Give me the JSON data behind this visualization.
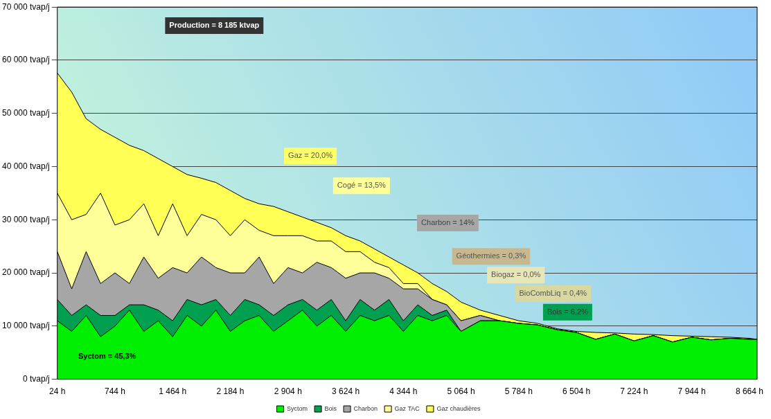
{
  "chart_data": {
    "type": "area",
    "stacked": true,
    "x": [
      24,
      204,
      384,
      564,
      744,
      924,
      1104,
      1284,
      1464,
      1644,
      1824,
      2004,
      2184,
      2364,
      2544,
      2724,
      2904,
      3084,
      3264,
      3444,
      3624,
      3804,
      3984,
      4164,
      4344,
      4524,
      4704,
      4884,
      5064,
      5304,
      5544,
      5784,
      6024,
      6264,
      6504,
      6744,
      6984,
      7224,
      7464,
      7704,
      7944,
      8184,
      8424,
      8664,
      8760
    ],
    "series": [
      {
        "name": "Syctom",
        "color": "#00ee00",
        "values": [
          11000,
          9000,
          12000,
          8000,
          10000,
          13000,
          9000,
          11000,
          8000,
          12000,
          10000,
          13000,
          9000,
          11000,
          12000,
          9000,
          11000,
          13000,
          10000,
          12000,
          9000,
          12000,
          11000,
          12000,
          9000,
          12000,
          11000,
          12000,
          9000,
          11000,
          11000,
          10500,
          10200,
          9300,
          8800,
          7500,
          8500,
          7200,
          8200,
          7000,
          7900,
          7400,
          7700,
          7500,
          7500
        ]
      },
      {
        "name": "Bois",
        "color": "#00a050",
        "values": [
          4000,
          3000,
          2000,
          4000,
          2000,
          1000,
          5000,
          2000,
          3000,
          3000,
          4000,
          2000,
          3000,
          4000,
          2000,
          3000,
          3000,
          2000,
          3000,
          3000,
          2000,
          3000,
          2000,
          3000,
          2000,
          2000,
          1000,
          1000,
          0,
          0,
          0,
          0,
          0,
          0,
          0,
          0,
          0,
          0,
          0,
          0,
          0,
          0,
          0,
          0,
          0
        ]
      },
      {
        "name": "Charbon",
        "color": "#a6a6a6",
        "values": [
          9000,
          5000,
          10000,
          6000,
          8000,
          4000,
          9000,
          6000,
          10000,
          5000,
          9000,
          6000,
          8000,
          5000,
          9000,
          6000,
          7000,
          5000,
          9000,
          6000,
          8000,
          5000,
          7000,
          4000,
          6000,
          3000,
          3000,
          1000,
          2000,
          1000,
          0,
          0,
          0,
          0,
          0,
          0,
          0,
          0,
          0,
          0,
          0,
          0,
          0,
          0,
          0
        ]
      },
      {
        "name": "Gaz TAC",
        "color": "#ffff99",
        "values": [
          11000,
          13000,
          7000,
          17000,
          9000,
          12000,
          10000,
          8000,
          12000,
          7000,
          8000,
          9000,
          7000,
          10000,
          5000,
          9000,
          6000,
          7000,
          4000,
          5000,
          5000,
          4000,
          2000,
          2000,
          1000,
          1000,
          0,
          0,
          0,
          0,
          0,
          0,
          0,
          0,
          0,
          0,
          0,
          0,
          0,
          0,
          0,
          0,
          0,
          0,
          0
        ]
      },
      {
        "name": "Gaz chaudières",
        "color": "#ffff55",
        "values": [
          22600,
          24000,
          18000,
          12000,
          16500,
          14000,
          10000,
          14500,
          7000,
          11500,
          6800,
          7000,
          8500,
          4000,
          5000,
          5500,
          4500,
          3500,
          3500,
          2500,
          3000,
          2000,
          2500,
          2000,
          3500,
          2000,
          3000,
          2500,
          3500,
          1000,
          1000,
          500,
          300,
          200,
          200,
          1300,
          200,
          1300,
          200,
          1200,
          200,
          600,
          200,
          200,
          0
        ]
      }
    ],
    "xlim": [
      24,
      8760
    ],
    "xticks": [
      {
        "value": 24,
        "label": "24 h"
      },
      {
        "value": 744,
        "label": "744 h"
      },
      {
        "value": 1464,
        "label": "1 464 h"
      },
      {
        "value": 2184,
        "label": "2 184 h"
      },
      {
        "value": 2904,
        "label": "2 904 h"
      },
      {
        "value": 3624,
        "label": "3 624 h"
      },
      {
        "value": 4344,
        "label": "4 344 h"
      },
      {
        "value": 5064,
        "label": "5 064 h"
      },
      {
        "value": 5784,
        "label": "5 784 h"
      },
      {
        "value": 6504,
        "label": "6 504 h"
      },
      {
        "value": 7224,
        "label": "7 224 h"
      },
      {
        "value": 7944,
        "label": "7 944 h"
      },
      {
        "value": 8664,
        "label": "8 664 h"
      }
    ],
    "ylim": [
      0,
      70000
    ],
    "yticks": [
      {
        "value": 0,
        "label": "0 tvap/j"
      },
      {
        "value": 10000,
        "label": "10 000 tvap/j"
      },
      {
        "value": 20000,
        "label": "20 000 tvap/j"
      },
      {
        "value": 30000,
        "label": "30 000 tvap/j"
      },
      {
        "value": 40000,
        "label": "40 000 tvap/j"
      },
      {
        "value": 50000,
        "label": "50 000 tvap/j"
      },
      {
        "value": 60000,
        "label": "60 000 tvap/j"
      },
      {
        "value": 70000,
        "label": "70 000 tvap/j"
      }
    ],
    "grid": "y",
    "legend": "bottom",
    "annotations": [
      "Production = 8 185 ktvap",
      "Gaz = 20,0%",
      "Cogé = 13,5%",
      "Charbon = 14%",
      "Géothermies = 0,3%",
      "Biogaz = 0,0%",
      "BioCombLiq = 0,4%",
      "Bois = 6,2%",
      "Syctom = 45,3%"
    ]
  }
}
